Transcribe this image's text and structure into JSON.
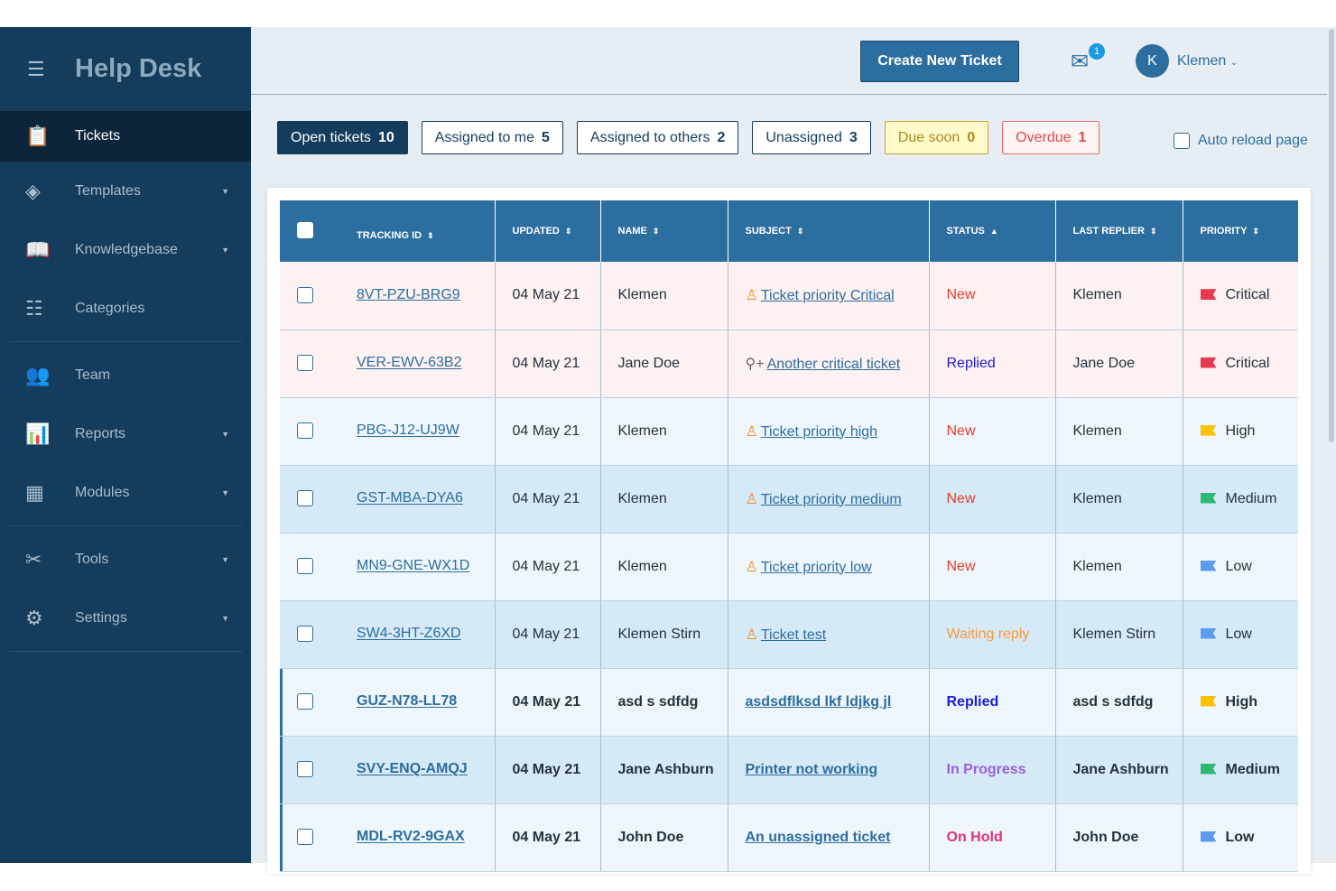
{
  "sidebar": {
    "title": "Help Desk",
    "items": [
      {
        "label": "Tickets",
        "icon": "clipboard-icon",
        "active": true
      },
      {
        "label": "Templates",
        "icon": "layers-icon",
        "caret": true
      },
      {
        "label": "Knowledgebase",
        "icon": "book-icon",
        "caret": true
      },
      {
        "label": "Categories",
        "icon": "list-icon"
      },
      {
        "label": "Team",
        "icon": "users-icon"
      },
      {
        "label": "Reports",
        "icon": "chart-icon",
        "caret": true
      },
      {
        "label": "Modules",
        "icon": "grid-icon",
        "caret": true
      },
      {
        "label": "Tools",
        "icon": "tools-icon",
        "caret": true
      },
      {
        "label": "Settings",
        "icon": "gear-icon",
        "caret": true
      }
    ]
  },
  "header": {
    "create_label": "Create New Ticket",
    "mail_count": "1",
    "avatar_initial": "K",
    "user": "Klemen"
  },
  "filters": [
    {
      "label": "Open tickets",
      "count": "10"
    },
    {
      "label": "Assigned to me",
      "count": "5"
    },
    {
      "label": "Assigned to others",
      "count": "2"
    },
    {
      "label": "Unassigned",
      "count": "3"
    },
    {
      "label": "Due soon",
      "count": "0"
    },
    {
      "label": "Overdue",
      "count": "1"
    }
  ],
  "auto_reload": "Auto reload page",
  "table": {
    "columns": [
      "TRACKING ID",
      "UPDATED",
      "NAME",
      "SUBJECT",
      "STATUS",
      "LAST REPLIER",
      "PRIORITY"
    ],
    "rows": [
      {
        "id": "8VT-PZU-BRG9",
        "updated": "04 May 21",
        "name": "Klemen",
        "subject": "Ticket priority Critical",
        "status": "New",
        "replier": "Klemen",
        "priority": "Critical"
      },
      {
        "id": "VER-EWV-63B2",
        "updated": "04 May 21",
        "name": "Jane Doe",
        "subject": "Another critical ticket",
        "status": "Replied",
        "replier": "Jane Doe",
        "priority": "Critical"
      },
      {
        "id": "PBG-J12-UJ9W",
        "updated": "04 May 21",
        "name": "Klemen",
        "subject": "Ticket priority high",
        "status": "New",
        "replier": "Klemen",
        "priority": "High"
      },
      {
        "id": "GST-MBA-DYA6",
        "updated": "04 May 21",
        "name": "Klemen",
        "subject": "Ticket priority medium",
        "status": "New",
        "replier": "Klemen",
        "priority": "Medium"
      },
      {
        "id": "MN9-GNE-WX1D",
        "updated": "04 May 21",
        "name": "Klemen",
        "subject": "Ticket priority low",
        "status": "New",
        "replier": "Klemen",
        "priority": "Low"
      },
      {
        "id": "SW4-3HT-Z6XD",
        "updated": "04 May 21",
        "name": "Klemen Stirn",
        "subject": "Ticket test",
        "status": "Waiting reply",
        "replier": "Klemen Stirn",
        "priority": "Low"
      },
      {
        "id": "GUZ-N78-LL78",
        "updated": "04 May 21",
        "name": "asd s sdfdg",
        "subject": "asdsdflksd lkf ldjkg jl",
        "status": "Replied",
        "replier": "asd s sdfdg",
        "priority": "High"
      },
      {
        "id": "SVY-ENQ-AMQJ",
        "updated": "04 May 21",
        "name": "Jane Ashburn",
        "subject": "Printer not working",
        "status": "In Progress",
        "replier": "Jane Ashburn",
        "priority": "Medium"
      },
      {
        "id": "MDL-RV2-9GAX",
        "updated": "04 May 21",
        "name": "John Doe",
        "subject": "An unassigned ticket",
        "status": "On Hold",
        "replier": "John Doe",
        "priority": "Low"
      }
    ]
  },
  "colors": {
    "status": {
      "New": "#e63b2e",
      "Replied": "#1a1adf",
      "Waiting reply": "#f59b3c",
      "In Progress": "#9a5fd8",
      "On Hold": "#e0327a"
    },
    "priority": {
      "Critical": "#e8384f",
      "High": "#fdc200",
      "Medium": "#2eb872",
      "Low": "#5b9cf0"
    }
  }
}
